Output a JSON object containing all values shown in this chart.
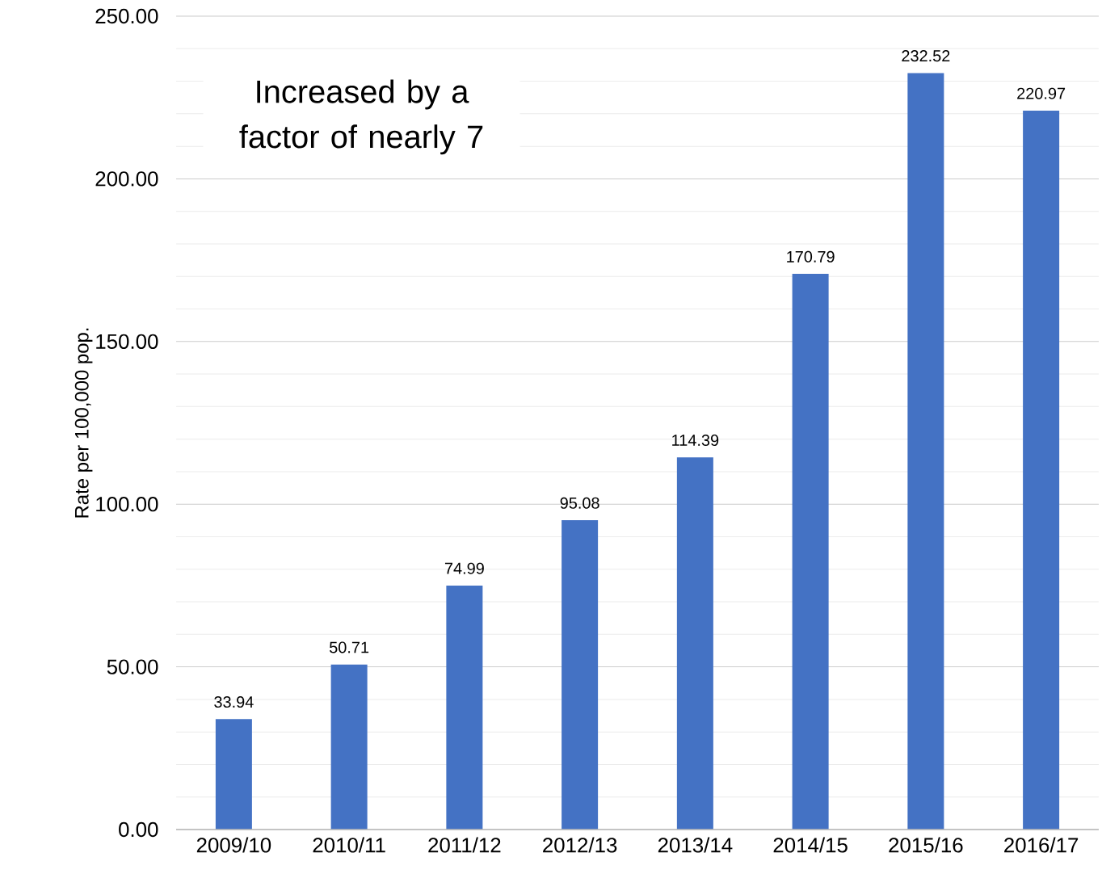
{
  "chart_data": {
    "type": "bar",
    "ylabel": "Rate per 100,000 pop.",
    "categories": [
      "2009/10",
      "2010/11",
      "2011/12",
      "2012/13",
      "2013/14",
      "2014/15",
      "2015/16",
      "2016/17"
    ],
    "values": [
      33.94,
      50.71,
      74.99,
      95.08,
      114.39,
      170.79,
      232.52,
      220.97
    ],
    "color": "#4472c4",
    "data_labels": true,
    "grid": "y",
    "ylim": [
      0,
      250
    ],
    "yticks": [
      {
        "value": 0,
        "label": "0.00"
      },
      {
        "value": 10,
        "label": null
      },
      {
        "value": 20,
        "label": null
      },
      {
        "value": 30,
        "label": null
      },
      {
        "value": 40,
        "label": null
      },
      {
        "value": 50,
        "label": "50.00"
      },
      {
        "value": 60,
        "label": null
      },
      {
        "value": 70,
        "label": null
      },
      {
        "value": 80,
        "label": null
      },
      {
        "value": 90,
        "label": null
      },
      {
        "value": 100,
        "label": "100.00"
      },
      {
        "value": 110,
        "label": null
      },
      {
        "value": 120,
        "label": null
      },
      {
        "value": 130,
        "label": null
      },
      {
        "value": 140,
        "label": null
      },
      {
        "value": 150,
        "label": "150.00"
      },
      {
        "value": 160,
        "label": null
      },
      {
        "value": 170,
        "label": null
      },
      {
        "value": 180,
        "label": null
      },
      {
        "value": 190,
        "label": null
      },
      {
        "value": 200,
        "label": "200.00"
      },
      {
        "value": 210,
        "label": null
      },
      {
        "value": 220,
        "label": null
      },
      {
        "value": 230,
        "label": null
      },
      {
        "value": 240,
        "label": null
      },
      {
        "value": 250,
        "label": "250.00"
      }
    ],
    "annotations": [
      "Increased by a factor of nearly 7"
    ]
  }
}
